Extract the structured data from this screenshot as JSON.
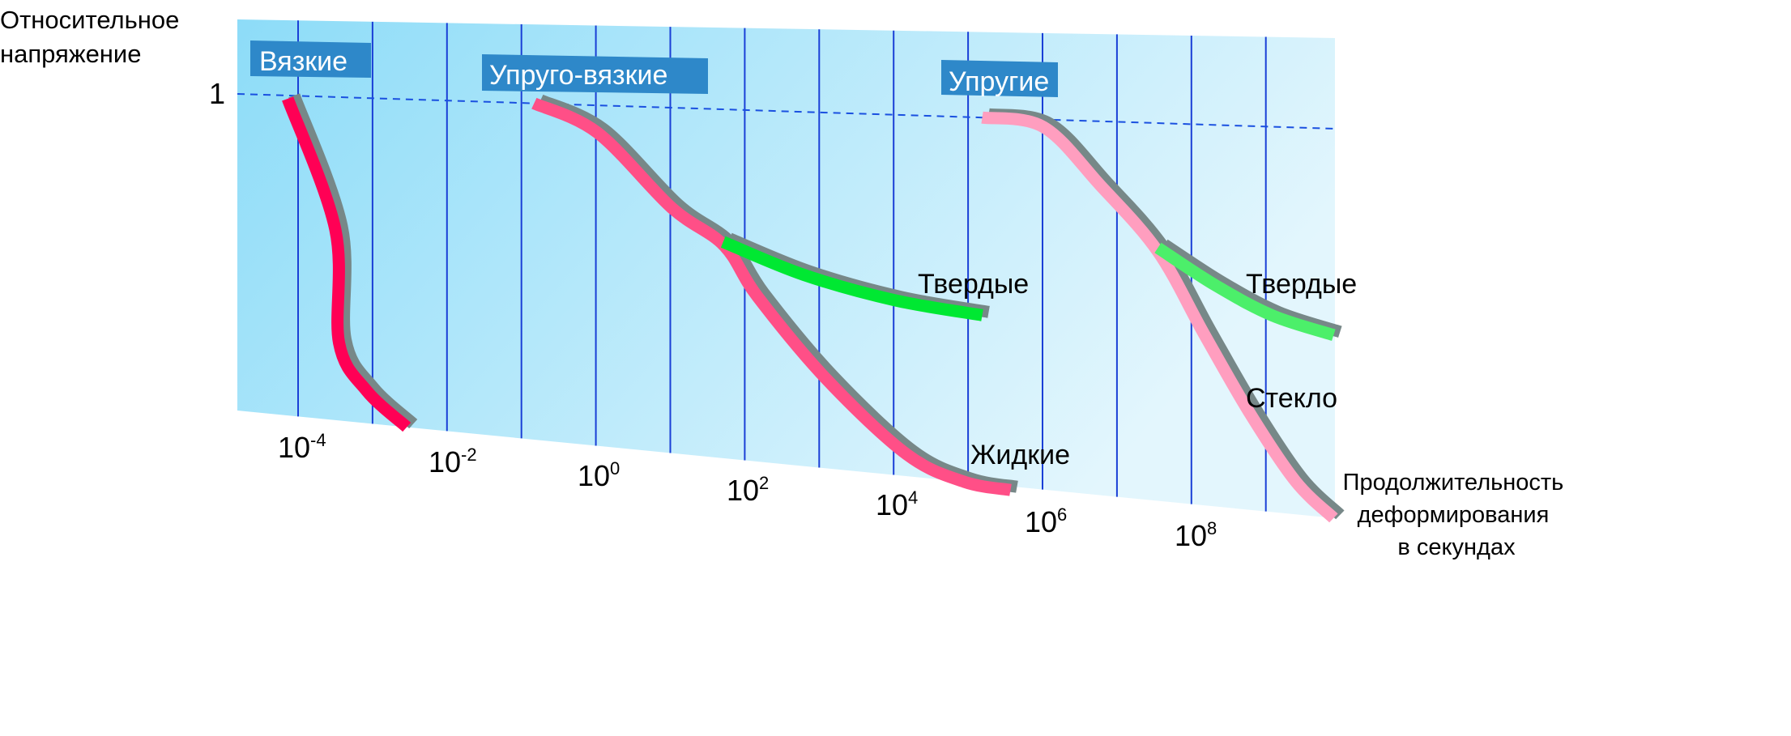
{
  "chart_data": {
    "type": "line",
    "title": "",
    "ylabel": [
      "Относительное",
      "напряжение"
    ],
    "xlabel": [
      "Продолжительность",
      "деформирования",
      "в секундах"
    ],
    "y_ticks": [
      "1"
    ],
    "x_scale": "log",
    "x_range_log10": [
      -4,
      9
    ],
    "y_range": [
      0,
      1
    ],
    "x_ticks": [
      {
        "base": "10",
        "exp": "-4",
        "log10": -4
      },
      {
        "base": "10",
        "exp": "-2",
        "log10": -2
      },
      {
        "base": "10",
        "exp": "0",
        "log10": 0
      },
      {
        "base": "10",
        "exp": "2",
        "log10": 2
      },
      {
        "base": "10",
        "exp": "4",
        "log10": 4
      },
      {
        "base": "10",
        "exp": "6",
        "log10": 6
      },
      {
        "base": "10",
        "exp": "8",
        "log10": 8
      }
    ],
    "grid": {
      "vertical": true,
      "reference_line_at": 1
    },
    "regions": [
      "Вязкие",
      "Упруго-вязкие",
      "Упругие"
    ],
    "curve_labels": {
      "liquid": "Жидкие",
      "solid_1": "Твердые",
      "solid_2": "Твердые",
      "glass": "Стекло"
    },
    "series": [
      {
        "region": "Вязкие",
        "color": "#ff0055",
        "points": [
          [
            -4.14,
            0.99
          ],
          [
            -3.5,
            0.59
          ],
          [
            -3.45,
            0.24
          ],
          [
            -3.08,
            0.1
          ],
          [
            -2.54,
            0.0
          ]
        ]
      },
      {
        "region": "Упруго-вязкие",
        "name": "Жидкие",
        "color": "#ff4f87",
        "points": [
          [
            -0.83,
            1.0
          ],
          [
            0.02,
            0.92
          ],
          [
            1.02,
            0.71
          ],
          [
            1.72,
            0.61
          ],
          [
            2.17,
            0.47
          ],
          [
            3.1,
            0.25
          ],
          [
            4.18,
            0.06
          ],
          [
            4.95,
            0.0
          ],
          [
            5.57,
            -0.01
          ]
        ]
      },
      {
        "region": "Упруго-вязкие",
        "name": "Твердые",
        "color": "#00e832",
        "points": [
          [
            1.71,
            0.62
          ],
          [
            2.79,
            0.54
          ],
          [
            4.02,
            0.485
          ],
          [
            5.19,
            0.46
          ]
        ]
      },
      {
        "region": "Упругие",
        "name": "Стекло",
        "color": "#ff9ebf",
        "points": [
          [
            5.19,
            1.0
          ],
          [
            6.01,
            0.98
          ],
          [
            6.77,
            0.83
          ],
          [
            7.55,
            0.66
          ],
          [
            8.17,
            0.45
          ],
          [
            8.79,
            0.25
          ],
          [
            9.4,
            0.085
          ],
          [
            9.91,
            0.0
          ]
        ]
      },
      {
        "region": "Упругие",
        "name": "Твердые",
        "color": "#4cef6a",
        "points": [
          [
            7.55,
            0.67
          ],
          [
            8.32,
            0.58
          ],
          [
            9.09,
            0.51
          ],
          [
            9.91,
            0.47
          ]
        ]
      }
    ],
    "colors": {
      "panel_left": "#8ddcf8",
      "panel_right": "#e3f6fd",
      "grid": "#1a3fd6",
      "region_box": "#2e88c9",
      "shadow": "#778888"
    }
  }
}
